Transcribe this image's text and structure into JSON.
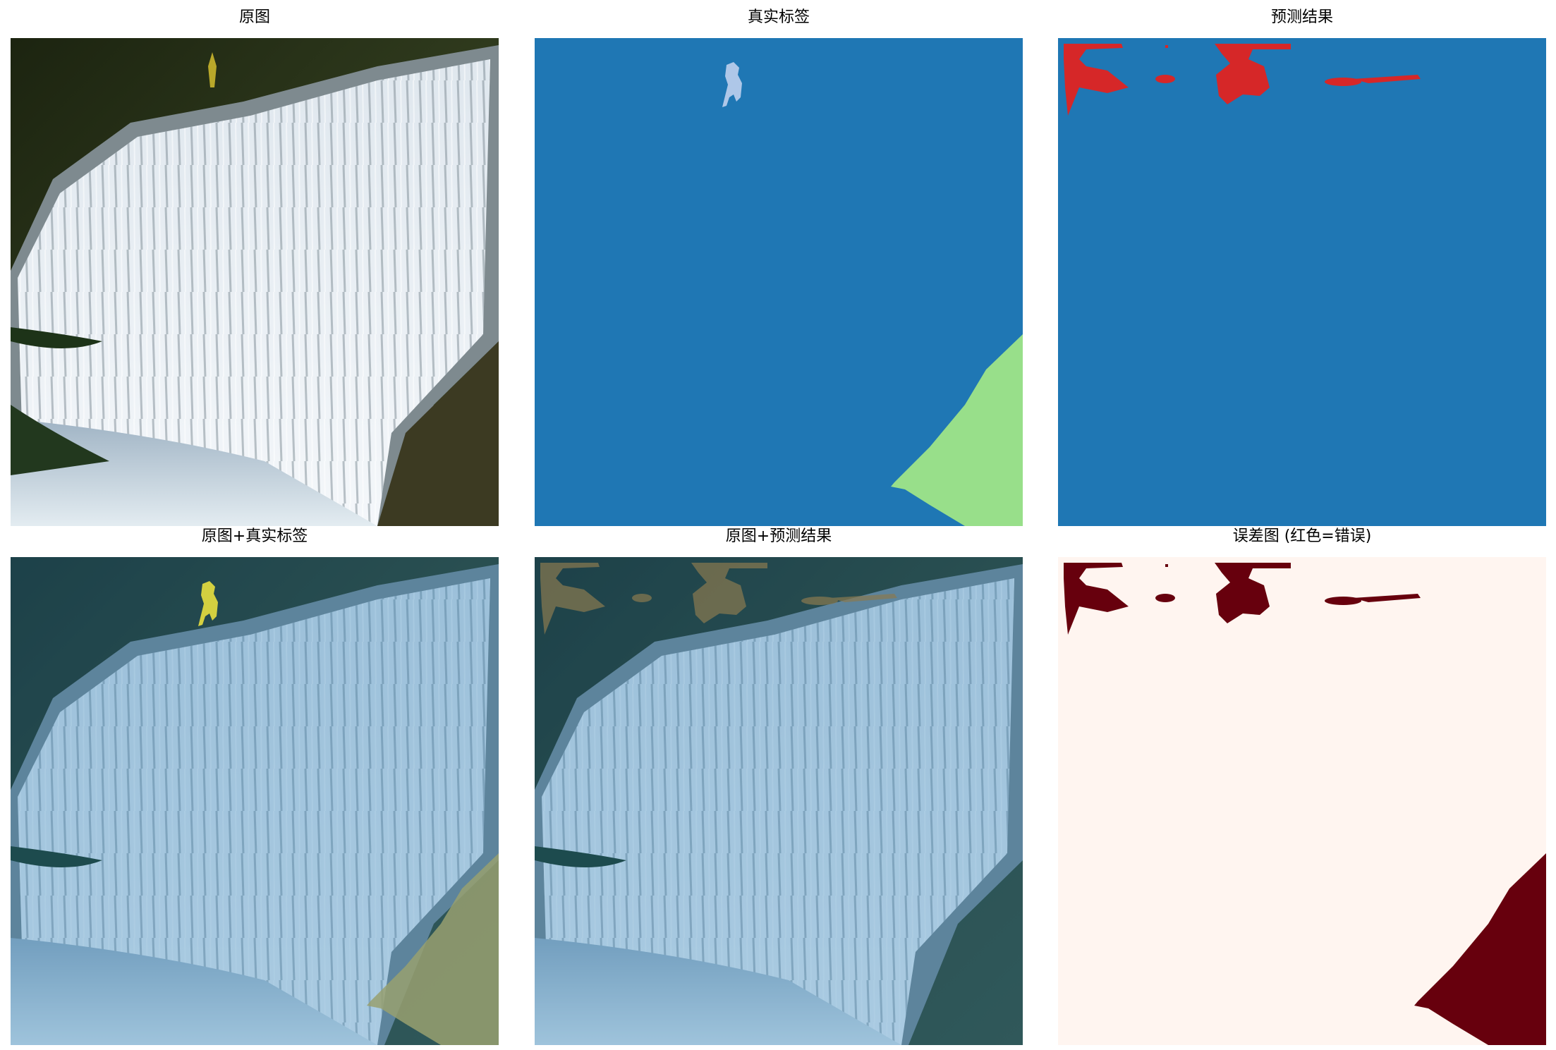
{
  "panels": [
    {
      "title": "原图"
    },
    {
      "title": "真实标签"
    },
    {
      "title": "预测结果"
    },
    {
      "title": "原图+真实标签"
    },
    {
      "title": "原图+预测结果"
    },
    {
      "title": "误差图 (红色=错误)"
    }
  ],
  "colors": {
    "water_class": "#1f77b4",
    "person_class": "#aec7e8",
    "rock_class": "#98df8a",
    "predicted_other_class": "#d62728",
    "error_background": "#fff5f0",
    "error_mark": "#67000d"
  }
}
